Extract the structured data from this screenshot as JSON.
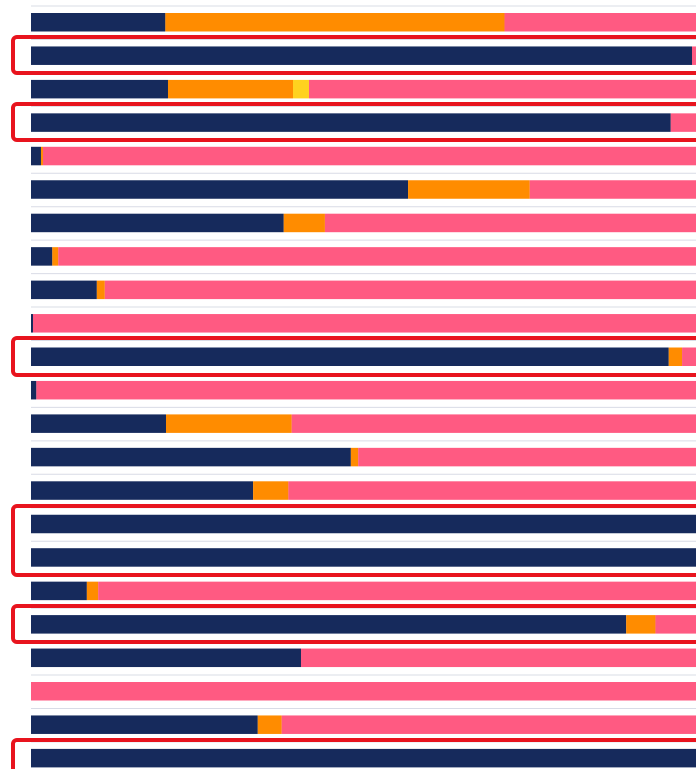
{
  "chart_data": {
    "type": "bar",
    "orientation": "horizontal",
    "stacked": true,
    "categories": [
      null,
      null,
      null,
      null,
      null,
      null,
      null,
      null,
      null,
      null,
      null,
      null,
      null,
      null,
      null,
      null,
      null,
      null,
      null,
      null,
      null,
      null,
      null
    ],
    "xlim": [
      0,
      100
    ],
    "series": [
      {
        "color": "#162a5c",
        "values": [
          20.2,
          99.4,
          20.6,
          96.2,
          1.5,
          56.7,
          38.0,
          3.2,
          9.9,
          0.3,
          95.9,
          0.8,
          20.3,
          48.1,
          33.4,
          100,
          100,
          8.4,
          89.5,
          40.6,
          0,
          34.1,
          100
        ]
      },
      {
        "color": "#ff8c00",
        "values": [
          51.0,
          0,
          18.8,
          0,
          0.3,
          18.3,
          6.2,
          0.9,
          1.2,
          0,
          2.0,
          0,
          18.9,
          1.1,
          5.3,
          0,
          0,
          1.7,
          4.4,
          0,
          0,
          3.6,
          0
        ]
      },
      {
        "color": "#ffd21f",
        "values": [
          0,
          0,
          2.4,
          0,
          0,
          0,
          0,
          0,
          0,
          0,
          0,
          0,
          0,
          0,
          0,
          0,
          0,
          0,
          0,
          0,
          0,
          0,
          0
        ]
      },
      {
        "color": "#ff5a82",
        "values": [
          28.8,
          0.6,
          58.2,
          3.8,
          98.2,
          25.0,
          55.8,
          95.9,
          88.9,
          99.7,
          2.1,
          99.2,
          60.8,
          50.8,
          61.3,
          0,
          0,
          89.9,
          6.1,
          59.4,
          100,
          62.3,
          0
        ]
      }
    ]
  }
}
